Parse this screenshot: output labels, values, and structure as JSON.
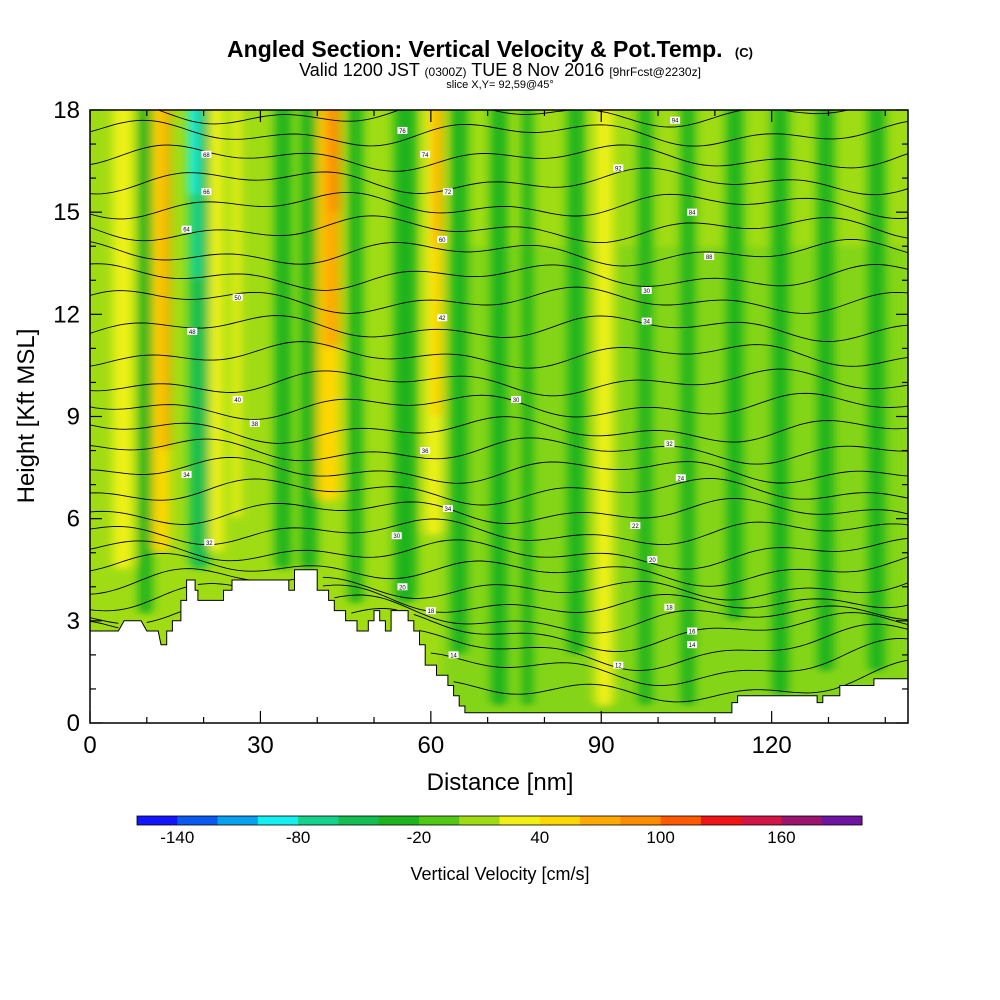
{
  "chart_data": {
    "type": "heatmap",
    "title": "Angled Section: Vertical Velocity & Pot.Temp.",
    "title_units": "(C)",
    "subtitle": {
      "valid": "Valid 1200 JST",
      "utc": "(0300Z)",
      "date": "TUE 8 Nov 2016",
      "forecast": "[9hrFcst@2230z]"
    },
    "slice": "slice X,Y= 92,59@45°",
    "xlabel": "Distance [nm]",
    "ylabel": "Height [Kft MSL]",
    "xlim": [
      0,
      144
    ],
    "ylim": [
      0,
      18
    ],
    "x_ticks": [
      "0",
      "30",
      "60",
      "90",
      "120"
    ],
    "y_ticks": [
      "0",
      "3",
      "6",
      "9",
      "12",
      "15",
      "18"
    ],
    "grid": false,
    "colorbar": {
      "label": "Vertical Velocity [cm/s]",
      "tick_labels": [
        "-140",
        "-80",
        "-20",
        "40",
        "100",
        "160"
      ],
      "colors": [
        "#1414ff",
        "#0a5af0",
        "#0aa0f0",
        "#14f0f0",
        "#14d28c",
        "#14be50",
        "#1eb41e",
        "#50c814",
        "#a0dc14",
        "#f0f014",
        "#ffd700",
        "#ffaa00",
        "#ff8c00",
        "#ff5a00",
        "#f01414",
        "#d21446",
        "#9b146e",
        "#6e14a0"
      ]
    },
    "terrain_kft": [
      [
        0,
        2.7
      ],
      [
        5,
        2.7
      ],
      [
        6,
        3.0
      ],
      [
        9,
        3.0
      ],
      [
        10,
        2.7
      ],
      [
        12,
        2.7
      ],
      [
        12.5,
        2.3
      ],
      [
        13.5,
        2.3
      ],
      [
        13.5,
        2.7
      ],
      [
        14.5,
        2.7
      ],
      [
        14.5,
        3.0
      ],
      [
        16,
        3.0
      ],
      [
        16,
        3.6
      ],
      [
        17,
        3.6
      ],
      [
        17,
        4.2
      ],
      [
        18.5,
        4.2
      ],
      [
        18.5,
        3.9
      ],
      [
        19,
        3.9
      ],
      [
        19,
        3.6
      ],
      [
        23.5,
        3.6
      ],
      [
        23.5,
        3.9
      ],
      [
        25,
        3.9
      ],
      [
        25,
        4.2
      ],
      [
        35,
        4.2
      ],
      [
        35,
        3.9
      ],
      [
        36,
        3.9
      ],
      [
        36,
        4.5
      ],
      [
        40,
        4.5
      ],
      [
        40,
        3.9
      ],
      [
        42,
        3.9
      ],
      [
        42,
        3.6
      ],
      [
        43,
        3.6
      ],
      [
        43,
        3.3
      ],
      [
        45,
        3.3
      ],
      [
        45,
        3.0
      ],
      [
        47,
        3.0
      ],
      [
        47,
        2.7
      ],
      [
        49,
        2.7
      ],
      [
        49,
        3.0
      ],
      [
        50,
        3.0
      ],
      [
        50,
        3.3
      ],
      [
        51,
        3.3
      ],
      [
        51,
        3.0
      ],
      [
        52,
        3.0
      ],
      [
        52,
        2.7
      ],
      [
        53,
        2.7
      ],
      [
        53,
        3.3
      ],
      [
        56,
        3.3
      ],
      [
        56,
        3.0
      ],
      [
        57,
        3.0
      ],
      [
        57,
        2.7
      ],
      [
        58,
        2.7
      ],
      [
        58,
        2.3
      ],
      [
        59,
        2.3
      ],
      [
        59,
        1.7
      ],
      [
        61,
        1.7
      ],
      [
        61,
        1.4
      ],
      [
        63,
        1.4
      ],
      [
        63,
        1.1
      ],
      [
        64,
        1.1
      ],
      [
        64,
        0.8
      ],
      [
        65,
        0.8
      ],
      [
        65,
        0.5
      ],
      [
        66,
        0.5
      ],
      [
        66,
        0.3
      ],
      [
        113,
        0.3
      ],
      [
        113,
        0.6
      ],
      [
        114,
        0.6
      ],
      [
        114,
        0.8
      ],
      [
        128,
        0.8
      ],
      [
        128,
        0.6
      ],
      [
        129,
        0.6
      ],
      [
        129,
        0.8
      ],
      [
        132,
        0.8
      ],
      [
        132,
        1.1
      ],
      [
        138,
        1.1
      ],
      [
        138,
        1.3
      ],
      [
        144,
        1.3
      ]
    ],
    "updraft_bands": [
      {
        "x": 4,
        "w": 3.5,
        "y0": 4.5,
        "level": 9
      },
      {
        "x": 11,
        "w": 3,
        "y0": 5.0,
        "level": 10
      },
      {
        "x": 12.5,
        "w": 1.5,
        "y0": 8.0,
        "level": 11
      },
      {
        "x": 21,
        "w": 2.5,
        "y0": 5.0,
        "level": 9
      },
      {
        "x": 25,
        "w": 1.5,
        "y0": 6.0,
        "level": 9
      },
      {
        "x": 40,
        "w": 4,
        "y0": 6.5,
        "level": 10
      },
      {
        "x": 41,
        "w": 3,
        "y0": 11.0,
        "level": 11
      },
      {
        "x": 42,
        "w": 2,
        "y0": 15.0,
        "level": 12
      },
      {
        "x": 59,
        "w": 3,
        "y0": 5.5,
        "level": 9
      },
      {
        "x": 60,
        "w": 2,
        "y0": 9.0,
        "level": 10
      },
      {
        "x": 60.5,
        "w": 1.3,
        "y0": 14.0,
        "level": 11
      },
      {
        "x": 89,
        "w": 3,
        "y0": 0.5,
        "level": 9
      },
      {
        "x": 91,
        "w": 1,
        "y0": 7.0,
        "level": 9
      }
    ],
    "downdraft_bands": [
      {
        "x": 8.5,
        "w": 2.5,
        "y0": 3.2,
        "level": 6
      },
      {
        "x": 17.5,
        "w": 3.5,
        "y0": 4.5,
        "level": 5
      },
      {
        "x": 17.5,
        "w": 2.0,
        "y0": 13.0,
        "level": 4
      },
      {
        "x": 17.3,
        "w": 1.5,
        "y0": 15.5,
        "level": 3
      },
      {
        "x": 32.5,
        "w": 3,
        "y0": 4.5,
        "level": 6
      },
      {
        "x": 37,
        "w": 3,
        "y0": 4.5,
        "level": 6
      },
      {
        "x": 45.5,
        "w": 2.5,
        "y0": 3.5,
        "level": 6
      },
      {
        "x": 53.5,
        "w": 4,
        "y0": 3.5,
        "level": 6
      },
      {
        "x": 63.5,
        "w": 3,
        "y0": 2.0,
        "level": 6
      },
      {
        "x": 70.5,
        "w": 3,
        "y0": 0.5,
        "level": 6
      },
      {
        "x": 76,
        "w": 2,
        "y0": 0.5,
        "level": 6
      },
      {
        "x": 84,
        "w": 3,
        "y0": 2.0,
        "level": 6
      },
      {
        "x": 96.5,
        "w": 2.5,
        "y0": 0.5,
        "level": 6
      },
      {
        "x": 104,
        "w": 2.5,
        "y0": 0.5,
        "level": 6
      },
      {
        "x": 112,
        "w": 3,
        "y0": 3.0,
        "level": 6
      },
      {
        "x": 120,
        "w": 3,
        "y0": 0.8,
        "level": 6
      },
      {
        "x": 128,
        "w": 3,
        "y0": 1.5,
        "level": 6
      },
      {
        "x": 137,
        "w": 3,
        "y0": 1.5,
        "level": 6
      }
    ],
    "background_level": 8,
    "background_mid_level": 7,
    "isentrope_levels_kft": [
      1.2,
      1.8,
      2.3,
      2.8,
      3.2,
      3.6,
      4.0,
      4.5,
      5.0,
      5.6,
      6.2,
      6.8,
      7.4,
      8.0,
      8.6,
      9.3,
      10.0,
      10.8,
      11.6,
      12.4,
      13.1,
      13.8,
      14.5,
      15.2,
      15.9,
      16.6,
      17.3,
      17.9
    ],
    "isentrope_labels": [
      {
        "x": 55,
        "y": 17.4,
        "text": "76"
      },
      {
        "x": 59,
        "y": 16.7,
        "text": "74"
      },
      {
        "x": 63,
        "y": 15.6,
        "text": "72"
      },
      {
        "x": 20.5,
        "y": 16.7,
        "text": "68"
      },
      {
        "x": 20.5,
        "y": 15.6,
        "text": "66"
      },
      {
        "x": 17,
        "y": 14.5,
        "text": "64"
      },
      {
        "x": 62,
        "y": 14.2,
        "text": "60"
      },
      {
        "x": 26,
        "y": 12.5,
        "text": "50"
      },
      {
        "x": 18,
        "y": 11.5,
        "text": "48"
      },
      {
        "x": 62,
        "y": 11.9,
        "text": "42"
      },
      {
        "x": 26,
        "y": 9.5,
        "text": "40"
      },
      {
        "x": 29,
        "y": 8.8,
        "text": "38"
      },
      {
        "x": 103,
        "y": 17.7,
        "text": "94"
      },
      {
        "x": 93,
        "y": 16.3,
        "text": "92"
      },
      {
        "x": 106,
        "y": 15.0,
        "text": "84"
      },
      {
        "x": 109,
        "y": 13.7,
        "text": "88"
      },
      {
        "x": 98,
        "y": 12.7,
        "text": "30"
      },
      {
        "x": 98,
        "y": 11.8,
        "text": "34"
      },
      {
        "x": 75,
        "y": 9.5,
        "text": "30"
      },
      {
        "x": 102,
        "y": 8.2,
        "text": "32"
      },
      {
        "x": 104,
        "y": 7.2,
        "text": "24"
      },
      {
        "x": 17,
        "y": 7.3,
        "text": "34"
      },
      {
        "x": 59,
        "y": 8.0,
        "text": "36"
      },
      {
        "x": 63,
        "y": 6.3,
        "text": "34"
      },
      {
        "x": 21,
        "y": 5.3,
        "text": "32"
      },
      {
        "x": 54,
        "y": 5.5,
        "text": "30"
      },
      {
        "x": 96,
        "y": 5.8,
        "text": "22"
      },
      {
        "x": 99,
        "y": 4.8,
        "text": "20"
      },
      {
        "x": 55,
        "y": 4.0,
        "text": "20"
      },
      {
        "x": 102,
        "y": 3.4,
        "text": "18"
      },
      {
        "x": 60,
        "y": 3.3,
        "text": "18"
      },
      {
        "x": 106,
        "y": 2.7,
        "text": "16"
      },
      {
        "x": 106,
        "y": 2.3,
        "text": "14"
      },
      {
        "x": 64,
        "y": 2.0,
        "text": "14"
      },
      {
        "x": 93,
        "y": 1.7,
        "text": "12"
      }
    ]
  }
}
